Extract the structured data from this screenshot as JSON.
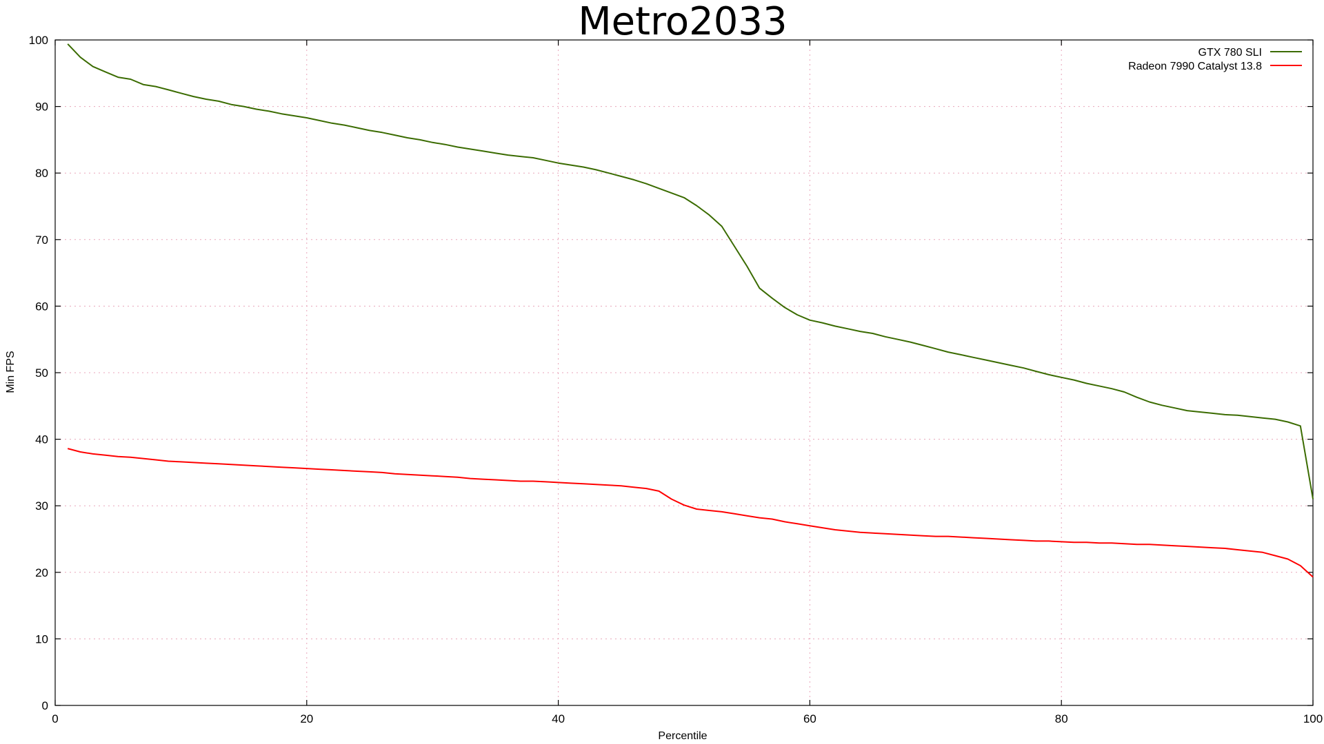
{
  "chart_data": {
    "type": "line",
    "title": "Metro2033",
    "xlabel": "Percentile",
    "ylabel": "Min FPS",
    "xlim": [
      0,
      100
    ],
    "ylim": [
      0,
      100
    ],
    "xticks": [
      0,
      20,
      40,
      60,
      80,
      100
    ],
    "yticks": [
      0,
      10,
      20,
      30,
      40,
      50,
      60,
      70,
      80,
      90,
      100
    ],
    "grid": true,
    "legend_position": "top-right",
    "x": [
      1,
      2,
      3,
      4,
      5,
      6,
      7,
      8,
      9,
      10,
      11,
      12,
      13,
      14,
      15,
      16,
      17,
      18,
      19,
      20,
      21,
      22,
      23,
      24,
      25,
      26,
      27,
      28,
      29,
      30,
      31,
      32,
      33,
      34,
      35,
      36,
      37,
      38,
      39,
      40,
      41,
      42,
      43,
      44,
      45,
      46,
      47,
      48,
      49,
      50,
      51,
      52,
      53,
      54,
      55,
      56,
      57,
      58,
      59,
      60,
      61,
      62,
      63,
      64,
      65,
      66,
      67,
      68,
      69,
      70,
      71,
      72,
      73,
      74,
      75,
      76,
      77,
      78,
      79,
      80,
      81,
      82,
      83,
      84,
      85,
      86,
      87,
      88,
      89,
      90,
      91,
      92,
      93,
      94,
      95,
      96,
      97,
      98,
      99,
      100
    ],
    "series": [
      {
        "name": "GTX 780 SLI",
        "color": "#3a6b00",
        "values": [
          99.4,
          97.4,
          96.0,
          95.2,
          94.4,
          94.1,
          93.3,
          93.0,
          92.5,
          92.0,
          91.5,
          91.1,
          90.8,
          90.3,
          90.0,
          89.6,
          89.3,
          88.9,
          88.6,
          88.3,
          87.9,
          87.5,
          87.2,
          86.8,
          86.4,
          86.1,
          85.7,
          85.3,
          85.0,
          84.6,
          84.3,
          83.9,
          83.6,
          83.3,
          83.0,
          82.7,
          82.5,
          82.3,
          81.9,
          81.5,
          81.2,
          80.9,
          80.5,
          80.0,
          79.5,
          79.0,
          78.4,
          77.7,
          77.0,
          76.3,
          75.1,
          73.7,
          72.0,
          69.0,
          66.0,
          62.7,
          61.2,
          59.8,
          58.7,
          57.9,
          57.5,
          57.0,
          56.6,
          56.2,
          55.9,
          55.4,
          55.0,
          54.6,
          54.1,
          53.6,
          53.1,
          52.7,
          52.3,
          51.9,
          51.5,
          51.1,
          50.7,
          50.2,
          49.7,
          49.3,
          48.9,
          48.4,
          48.0,
          47.6,
          47.1,
          46.3,
          45.6,
          45.1,
          44.7,
          44.3,
          44.1,
          43.9,
          43.7,
          43.6,
          43.4,
          43.2,
          43.0,
          42.6,
          42.0,
          31.0
        ]
      },
      {
        "name": "Radeon 7990 Catalyst 13.8",
        "color": "#ff0000",
        "values": [
          38.6,
          38.1,
          37.8,
          37.6,
          37.4,
          37.3,
          37.1,
          36.9,
          36.7,
          36.6,
          36.5,
          36.4,
          36.3,
          36.2,
          36.1,
          36.0,
          35.9,
          35.8,
          35.7,
          35.6,
          35.5,
          35.4,
          35.3,
          35.2,
          35.1,
          35.0,
          34.8,
          34.7,
          34.6,
          34.5,
          34.4,
          34.3,
          34.1,
          34.0,
          33.9,
          33.8,
          33.7,
          33.7,
          33.6,
          33.5,
          33.4,
          33.3,
          33.2,
          33.1,
          33.0,
          32.8,
          32.6,
          32.2,
          31.0,
          30.1,
          29.5,
          29.3,
          29.1,
          28.8,
          28.5,
          28.2,
          28.0,
          27.6,
          27.3,
          27.0,
          26.7,
          26.4,
          26.2,
          26.0,
          25.9,
          25.8,
          25.7,
          25.6,
          25.5,
          25.4,
          25.4,
          25.3,
          25.2,
          25.1,
          25.0,
          24.9,
          24.8,
          24.7,
          24.7,
          24.6,
          24.5,
          24.5,
          24.4,
          24.4,
          24.3,
          24.2,
          24.2,
          24.1,
          24.0,
          23.9,
          23.8,
          23.7,
          23.6,
          23.4,
          23.2,
          23.0,
          22.5,
          22.0,
          21.0,
          19.3
        ]
      }
    ]
  }
}
